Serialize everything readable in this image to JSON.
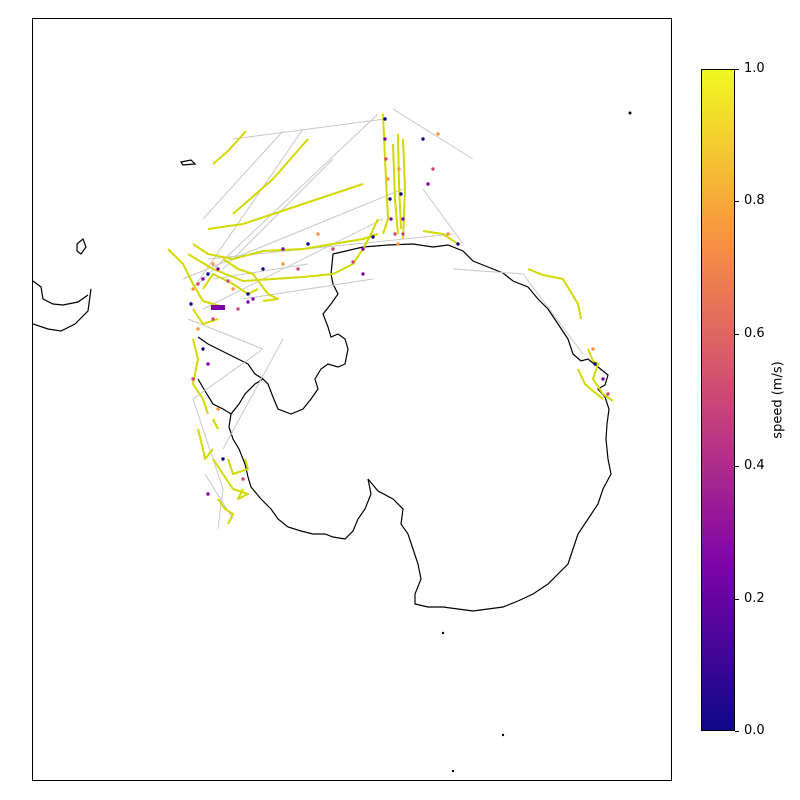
{
  "chart_data": {
    "type": "map",
    "projection": "south-polar-stereographic",
    "colorbar": {
      "label": "speed (m/s)",
      "range": [
        0,
        1
      ],
      "ticks": [
        "0.0",
        "0.2",
        "0.4",
        "0.6",
        "0.8",
        "1.0"
      ],
      "colormap": "plasma"
    },
    "colors": {
      "track": "#d4d900",
      "gap_line": "#c8c8c8",
      "coast": "#000000",
      "cmap_low": "#0d0887",
      "cmap_mid1": "#7e03a8",
      "cmap_mid2": "#cc4778",
      "cmap_mid3": "#f89540",
      "cmap_high": "#f0f921"
    }
  }
}
